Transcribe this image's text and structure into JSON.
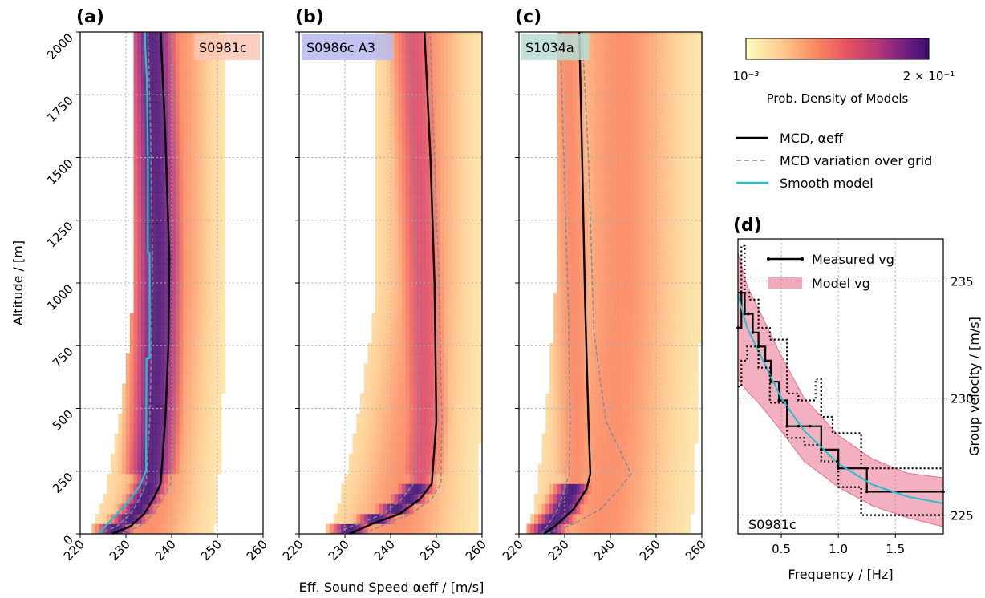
{
  "colors": {
    "mcd": "#000000",
    "mcd_variation": "#7f8c9a",
    "smooth": "#22c3cf",
    "model_fill": "#e8708d",
    "measured": "#000000",
    "cmap": [
      "#fcfdbf",
      "#fec98d",
      "#fc8961",
      "#e85362",
      "#b73779",
      "#721f81",
      "#3b0f70"
    ],
    "tag_a": "#f9c7b4",
    "tag_b": "#b9b9ee",
    "tag_c": "#b9dcd4"
  },
  "colorbar": {
    "min_label": "10⁻³",
    "max_label": "2 × 10⁻¹",
    "label": "Prob. Density of Models"
  },
  "legend_main": [
    {
      "label": "MCD, αeff",
      "style": "solid-black"
    },
    {
      "label": "MCD variation over grid",
      "style": "dashed-grey"
    },
    {
      "label": "Smooth model",
      "style": "solid-cyan"
    }
  ],
  "shared": {
    "xlabel": "Eff. Sound Speed αeff / [m/s]",
    "ylabel": "Altitude / [m]"
  },
  "chart_data": [
    {
      "type": "line",
      "panel": "(a)",
      "tag": "S0981c",
      "xlim": [
        220,
        260
      ],
      "ylim": [
        0,
        2000
      ],
      "xticks": [
        "220",
        "230",
        "240",
        "250",
        "260"
      ],
      "yticks": [
        "0",
        "250",
        "500",
        "750",
        "1000",
        "1250",
        "1500",
        "1750",
        "2000"
      ],
      "grid": true,
      "heatmap_extent": {
        "low_min": 221,
        "low_max": 249,
        "high_min": 232,
        "high_max": 252,
        "peak": 235
      },
      "series": [
        {
          "name": "MCD, αeff",
          "role": "mcd",
          "x": [
            227,
            231,
            234,
            236,
            237.6,
            238.6,
            239.3,
            239.5,
            238.6,
            237.6
          ],
          "y": [
            0,
            30,
            80,
            140,
            200,
            450,
            750,
            1100,
            1600,
            2000
          ]
        },
        {
          "name": "MCD variation over grid",
          "role": "var_lo",
          "x": [
            224,
            228,
            231,
            233,
            234.4,
            235.2,
            235.6,
            235.8,
            235.4,
            234.8
          ],
          "y": [
            0,
            30,
            80,
            140,
            200,
            450,
            750,
            1100,
            1600,
            2000
          ]
        },
        {
          "name": "MCD variation over grid",
          "role": "var_hi",
          "x": [
            229,
            233,
            236,
            238,
            239.8,
            240.8,
            241.3,
            241.6,
            240.8,
            239.8
          ],
          "y": [
            0,
            30,
            80,
            140,
            200,
            450,
            750,
            1100,
            1600,
            2000
          ]
        },
        {
          "name": "Smooth model",
          "role": "smooth",
          "x": [
            224,
            226,
            228.5,
            231,
            233,
            234.4,
            234.5,
            235.2,
            235.2,
            234.8,
            234.8,
            234.6,
            234.2,
            234.2
          ],
          "y": [
            0,
            40,
            90,
            140,
            190,
            250,
            700,
            700,
            1120,
            1120,
            1500,
            1800,
            1950,
            2000
          ]
        }
      ]
    },
    {
      "type": "line",
      "panel": "(b)",
      "tag": "S0986c A3",
      "xlim": [
        220,
        260
      ],
      "ylim": [
        0,
        2000
      ],
      "xticks": [
        "220",
        "230",
        "240",
        "250",
        "260"
      ],
      "grid": true,
      "heatmap_extent": {
        "low_min": 224,
        "low_max": 259,
        "high_min": 237,
        "high_max": 260,
        "peak": 246
      },
      "series": [
        {
          "name": "MCD, αeff",
          "role": "mcd",
          "x": [
            231,
            236,
            242,
            246.5,
            249,
            250,
            249.6,
            248.7,
            247.4
          ],
          "y": [
            0,
            40,
            80,
            140,
            200,
            450,
            1000,
            1500,
            2000
          ]
        },
        {
          "name": "MCD variation over grid",
          "role": "var_lo",
          "x": [
            227,
            233,
            238.5,
            242.5,
            245,
            246,
            245.6,
            244.8,
            243.8
          ],
          "y": [
            0,
            40,
            80,
            140,
            200,
            450,
            1000,
            1500,
            2000
          ]
        },
        {
          "name": "MCD variation over grid",
          "role": "var_hi",
          "x": [
            234,
            239,
            244.5,
            249,
            251,
            251.2,
            250.6,
            249.6,
            248.6
          ],
          "y": [
            0,
            40,
            80,
            140,
            200,
            450,
            1000,
            1500,
            2000
          ]
        }
      ]
    },
    {
      "type": "line",
      "panel": "(c)",
      "tag": "S1034a",
      "xlim": [
        220,
        260
      ],
      "ylim": [
        0,
        2000
      ],
      "xticks": [
        "220",
        "230",
        "240",
        "250",
        "260"
      ],
      "grid": true,
      "heatmap_extent": {
        "low_min": 221,
        "low_max": 257,
        "high_min": 228,
        "high_max": 260,
        "peak": 234
      },
      "series": [
        {
          "name": "MCD, αeff",
          "role": "mcd",
          "x": [
            225.5,
            228.5,
            232,
            234.8,
            235.6,
            235.2,
            234.5,
            233.8,
            233.2
          ],
          "y": [
            0,
            40,
            100,
            180,
            240,
            450,
            900,
            1500,
            2000
          ]
        },
        {
          "name": "MCD variation over grid",
          "role": "var_lo",
          "x": [
            225,
            226.5,
            228.5,
            230,
            231,
            231.2,
            230.8,
            229.8,
            229
          ],
          "y": [
            0,
            40,
            100,
            180,
            240,
            450,
            900,
            1500,
            2000
          ]
        },
        {
          "name": "MCD variation over grid",
          "role": "var_hi",
          "x": [
            226,
            232,
            238,
            242,
            244.5,
            239,
            236.4,
            235.2,
            233.8
          ],
          "y": [
            0,
            40,
            100,
            180,
            240,
            450,
            800,
            1500,
            2000
          ]
        }
      ]
    },
    {
      "type": "line",
      "panel": "(d)",
      "tag": "S0981c",
      "xlabel": "Frequency / [Hz]",
      "ylabel": "Group velocity / [m/s]",
      "xlim": [
        0.12,
        1.92
      ],
      "ylim": [
        224.2,
        236.8
      ],
      "xticks": [
        "0.5",
        "1.0",
        "1.5"
      ],
      "xtick_values": [
        0.5,
        1.0,
        1.5
      ],
      "yticks": [
        "225",
        "230",
        "235"
      ],
      "ytick_values": [
        225,
        230,
        235
      ],
      "grid": true,
      "legend": [
        "Measured vg",
        "Model vg"
      ],
      "series": [
        {
          "name": "Measured vg",
          "role": "measured",
          "x": [
            0.12,
            0.15,
            0.18,
            0.21,
            0.25,
            0.3,
            0.36,
            0.41,
            0.48,
            0.55,
            0.65,
            0.75,
            0.85,
            1.0,
            1.25,
            1.92
          ],
          "y": [
            233.0,
            234.5,
            233.6,
            233.6,
            232.8,
            232.2,
            231.6,
            230.7,
            229.9,
            228.8,
            228.8,
            228.8,
            227.8,
            227.0,
            226.0,
            226.0
          ]
        },
        {
          "name": "Model vg",
          "role": "model_upper",
          "x": [
            0.12,
            0.2,
            0.3,
            0.5,
            0.7,
            1.0,
            1.3,
            1.6,
            1.92
          ],
          "y": [
            236.2,
            234.8,
            233.8,
            231.8,
            230.0,
            228.4,
            227.4,
            226.8,
            226.6
          ]
        },
        {
          "name": "Model vg",
          "role": "model_lower",
          "x": [
            0.12,
            0.2,
            0.3,
            0.5,
            0.7,
            1.0,
            1.3,
            1.6,
            1.92
          ],
          "y": [
            230.8,
            230.3,
            229.8,
            228.6,
            227.3,
            226.2,
            225.4,
            224.9,
            224.5
          ]
        },
        {
          "name": "Model vg",
          "role": "model_mean",
          "x": [
            0.12,
            0.2,
            0.3,
            0.5,
            0.7,
            1.0,
            1.3,
            1.6,
            1.92
          ],
          "y": [
            234.4,
            233.0,
            232.0,
            230.0,
            228.6,
            227.2,
            226.3,
            225.8,
            225.5
          ]
        },
        {
          "name": "",
          "role": "dotted_upper",
          "x": [
            0.12,
            0.15,
            0.18,
            0.22,
            0.3,
            0.4,
            0.55,
            0.65,
            0.75,
            0.8,
            0.85,
            0.95,
            1.2,
            1.92
          ],
          "y": [
            234.5,
            236.5,
            234.5,
            234.2,
            233.0,
            232.5,
            230.2,
            229.9,
            229.9,
            230.8,
            229.2,
            228.5,
            227.0,
            227.0
          ]
        },
        {
          "name": "",
          "role": "dotted_lower",
          "x": [
            0.12,
            0.15,
            0.2,
            0.3,
            0.4,
            0.55,
            0.7,
            0.85,
            1.0,
            1.2,
            1.92
          ],
          "y": [
            230.5,
            231.6,
            232.2,
            231.3,
            229.8,
            228.3,
            228.0,
            227.3,
            226.2,
            225.0,
            225.0
          ]
        }
      ]
    }
  ]
}
